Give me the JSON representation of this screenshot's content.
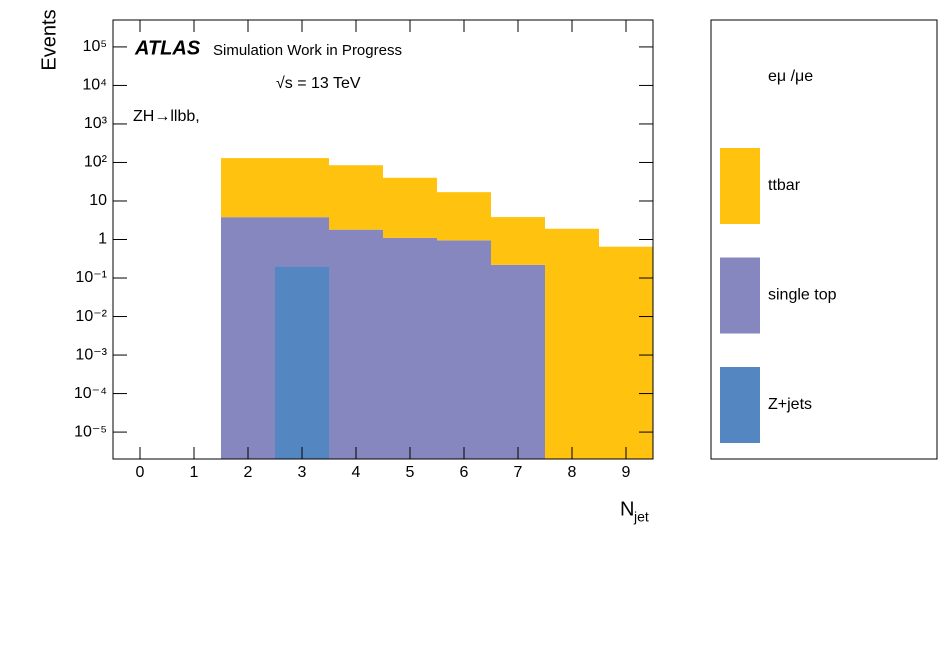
{
  "chart_data": {
    "type": "stacked_histogram",
    "y_label": "Events",
    "x_label": "N",
    "x_label_sub": "jet",
    "annotations": [
      "ATLAS",
      "Simulation Work in Progress",
      "√s = 13 TeV",
      "ZH→llbb,"
    ],
    "legend_header": "eμ /μe",
    "bins": [
      -0.5,
      0.5,
      1.5,
      2.5,
      3.5,
      4.5,
      5.5,
      6.5,
      7.5,
      8.5,
      9.5
    ],
    "series": [
      {
        "name": "Z+jets",
        "color": "#5487c2",
        "values": [
          0,
          0,
          0,
          0.2,
          0,
          0,
          0,
          0,
          0,
          0
        ]
      },
      {
        "name": "single top",
        "color": "#8787c0",
        "values": [
          0,
          0,
          3.8,
          3.6,
          1.8,
          1.1,
          0.95,
          0.22,
          0,
          0
        ]
      },
      {
        "name": "ttbar",
        "color": "#ffc20e",
        "values": [
          0,
          0,
          126,
          126,
          83,
          39,
          16,
          3.6,
          1.9,
          0.65
        ]
      }
    ],
    "xlim": [
      -0.5,
      9.5
    ],
    "xticks": [
      0,
      1,
      2,
      3,
      4,
      5,
      6,
      7,
      8,
      9
    ],
    "ylim": [
      2e-06,
      500000
    ],
    "log_y": true,
    "yticks": [
      {
        "value": 100000,
        "label": "10⁵"
      },
      {
        "value": 10000,
        "label": "10⁴"
      },
      {
        "value": 1000,
        "label": "10³"
      },
      {
        "value": 100,
        "label": "10²"
      },
      10,
      1,
      {
        "value": 0.1,
        "label": "10⁻¹"
      },
      {
        "value": 0.01,
        "label": "10⁻²"
      },
      {
        "value": 0.001,
        "label": "10⁻³"
      },
      {
        "value": 0.0001,
        "label": "10⁻⁴"
      },
      {
        "value": 1e-05,
        "label": "10⁻⁵"
      }
    ]
  }
}
